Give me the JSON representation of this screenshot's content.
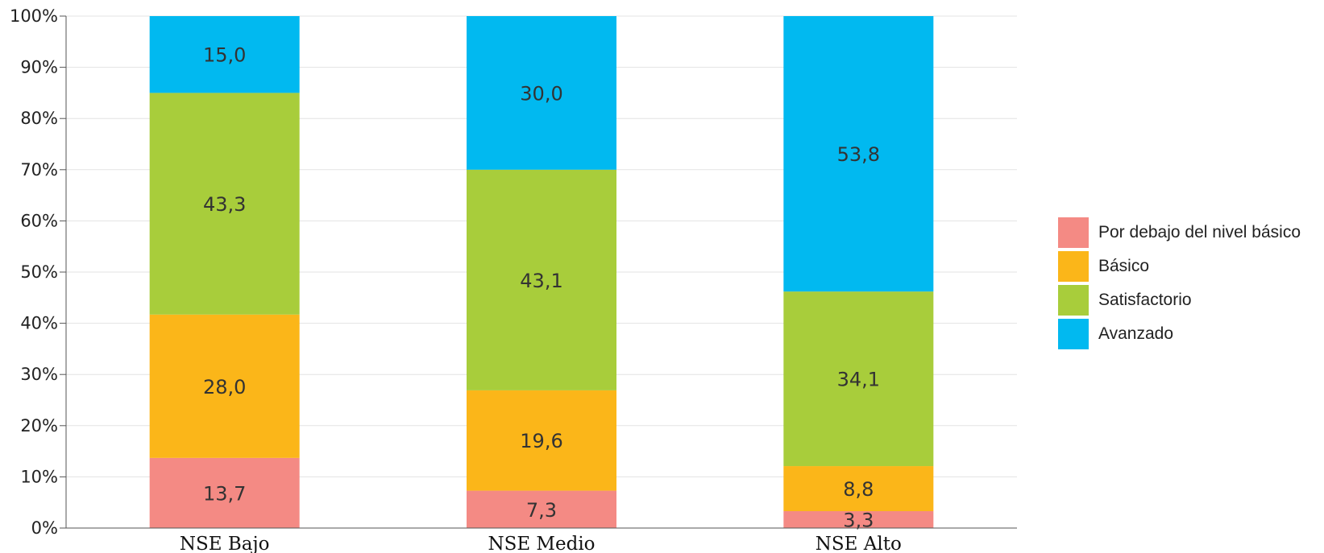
{
  "chart_data": {
    "type": "bar",
    "stacked": true,
    "categories": [
      "NSE Bajo",
      "NSE Medio",
      "NSE Alto"
    ],
    "series": [
      {
        "name": "Por debajo del nivel básico",
        "color": "#f48a84",
        "values": [
          13.7,
          7.3,
          3.3
        ],
        "labels": [
          "13,7",
          "7,3",
          "3,3"
        ]
      },
      {
        "name": "Básico",
        "color": "#fbb619",
        "values": [
          28.0,
          19.6,
          8.8
        ],
        "labels": [
          "28,0",
          "19,6",
          "8,8"
        ]
      },
      {
        "name": "Satisfactorio",
        "color": "#a8cd3b",
        "values": [
          43.3,
          43.1,
          34.1
        ],
        "labels": [
          "43,3",
          "43,1",
          "34,1"
        ]
      },
      {
        "name": "Avanzado",
        "color": "#01b9f0",
        "values": [
          15.0,
          30.0,
          53.8
        ],
        "labels": [
          "15,0",
          "30,0",
          "53,8"
        ]
      }
    ],
    "ylim": [
      0,
      100
    ],
    "yticks": [
      "0%",
      "10%",
      "20%",
      "30%",
      "40%",
      "50%",
      "60%",
      "70%",
      "80%",
      "90%",
      "100%"
    ],
    "grid": true,
    "legend_position": "right",
    "title": "",
    "xlabel": "",
    "ylabel": ""
  }
}
